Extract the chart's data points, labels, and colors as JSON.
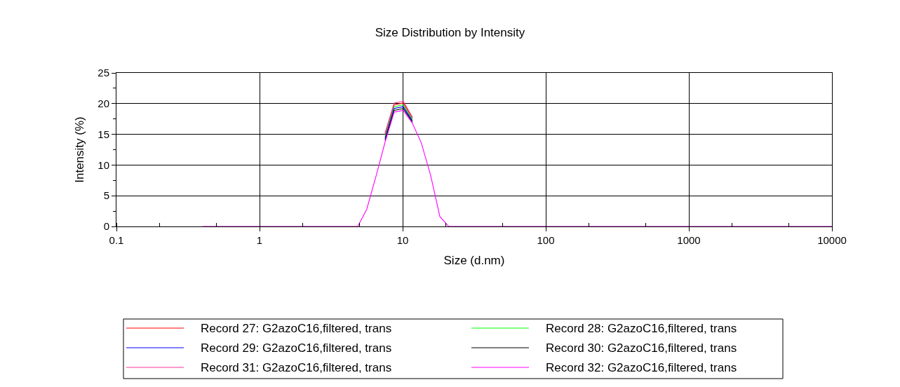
{
  "chart_data": {
    "type": "line",
    "title": "Size Distribution by Intensity",
    "xlabel": "Size (d.nm)",
    "ylabel": "Intensity (%)",
    "log": "x",
    "xlim": [
      0.1,
      10000
    ],
    "xticks": [
      0.1,
      1,
      10,
      100,
      1000,
      10000
    ],
    "ylim": [
      0,
      25
    ],
    "yticks": [
      0,
      5,
      10,
      15,
      20,
      25
    ],
    "grid": true,
    "legend": "bottom",
    "x": [
      0.4,
      4.85,
      5.61,
      6.5,
      7.53,
      8.72,
      10.1,
      11.7,
      13.5,
      15.7,
      18.2,
      21.0,
      10000
    ],
    "series": [
      {
        "name": "Record 27: G2azoC16,filtered, trans",
        "color": "#ff0000",
        "values": [
          null,
          null,
          null,
          null,
          14.9,
          19.8,
          20.1,
          17.6,
          null,
          null,
          null,
          null,
          null
        ]
      },
      {
        "name": "Record 28: G2azoC16,filtered, trans",
        "color": "#00ff00",
        "values": [
          null,
          null,
          null,
          null,
          14.6,
          19.5,
          19.8,
          17.4,
          null,
          null,
          null,
          null,
          null
        ]
      },
      {
        "name": "Record 29: G2azoC16,filtered, trans",
        "color": "#0000ff",
        "values": [
          null,
          null,
          null,
          null,
          14.3,
          19.2,
          19.5,
          17.2,
          null,
          null,
          null,
          null,
          null
        ]
      },
      {
        "name": "Record 30: G2azoC16,filtered, trans",
        "color": "#000000",
        "values": [
          null,
          null,
          null,
          null,
          14.0,
          18.9,
          19.2,
          17.0,
          null,
          null,
          null,
          null,
          null
        ]
      },
      {
        "name": "Record 31: G2azoC16,filtered, trans",
        "color": "#ff3399",
        "values": [
          null,
          null,
          null,
          null,
          15.2,
          20.1,
          20.4,
          17.8,
          null,
          null,
          null,
          null,
          null
        ]
      },
      {
        "name": "Record 32: G2azoC16,filtered, trans",
        "color": "#ff00ff",
        "values": [
          0,
          0,
          2.8,
          8.1,
          13.7,
          18.6,
          18.9,
          16.8,
          13.6,
          8.3,
          1.6,
          0,
          0
        ]
      }
    ]
  }
}
